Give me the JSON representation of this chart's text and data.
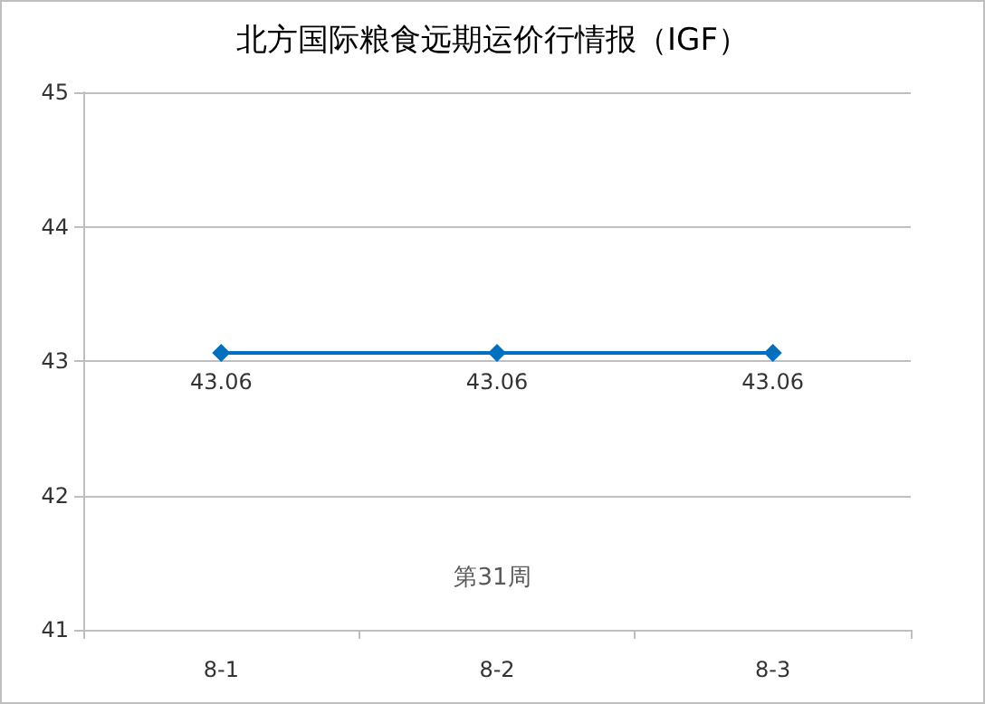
{
  "chart_data": {
    "type": "line",
    "title": "北方国际粮食远期运价行情报（IGF）",
    "annotations": [
      "第31周"
    ],
    "categories": [
      "8-1",
      "8-2",
      "8-3"
    ],
    "series": [
      {
        "color": "#0070c0",
        "values": [
          43.06,
          43.06,
          43.06
        ]
      }
    ],
    "ylim": [
      41,
      45
    ],
    "yticks": [
      41,
      42,
      43,
      44,
      45
    ],
    "grid": "y",
    "marker": "diamond",
    "data_labels": true
  }
}
